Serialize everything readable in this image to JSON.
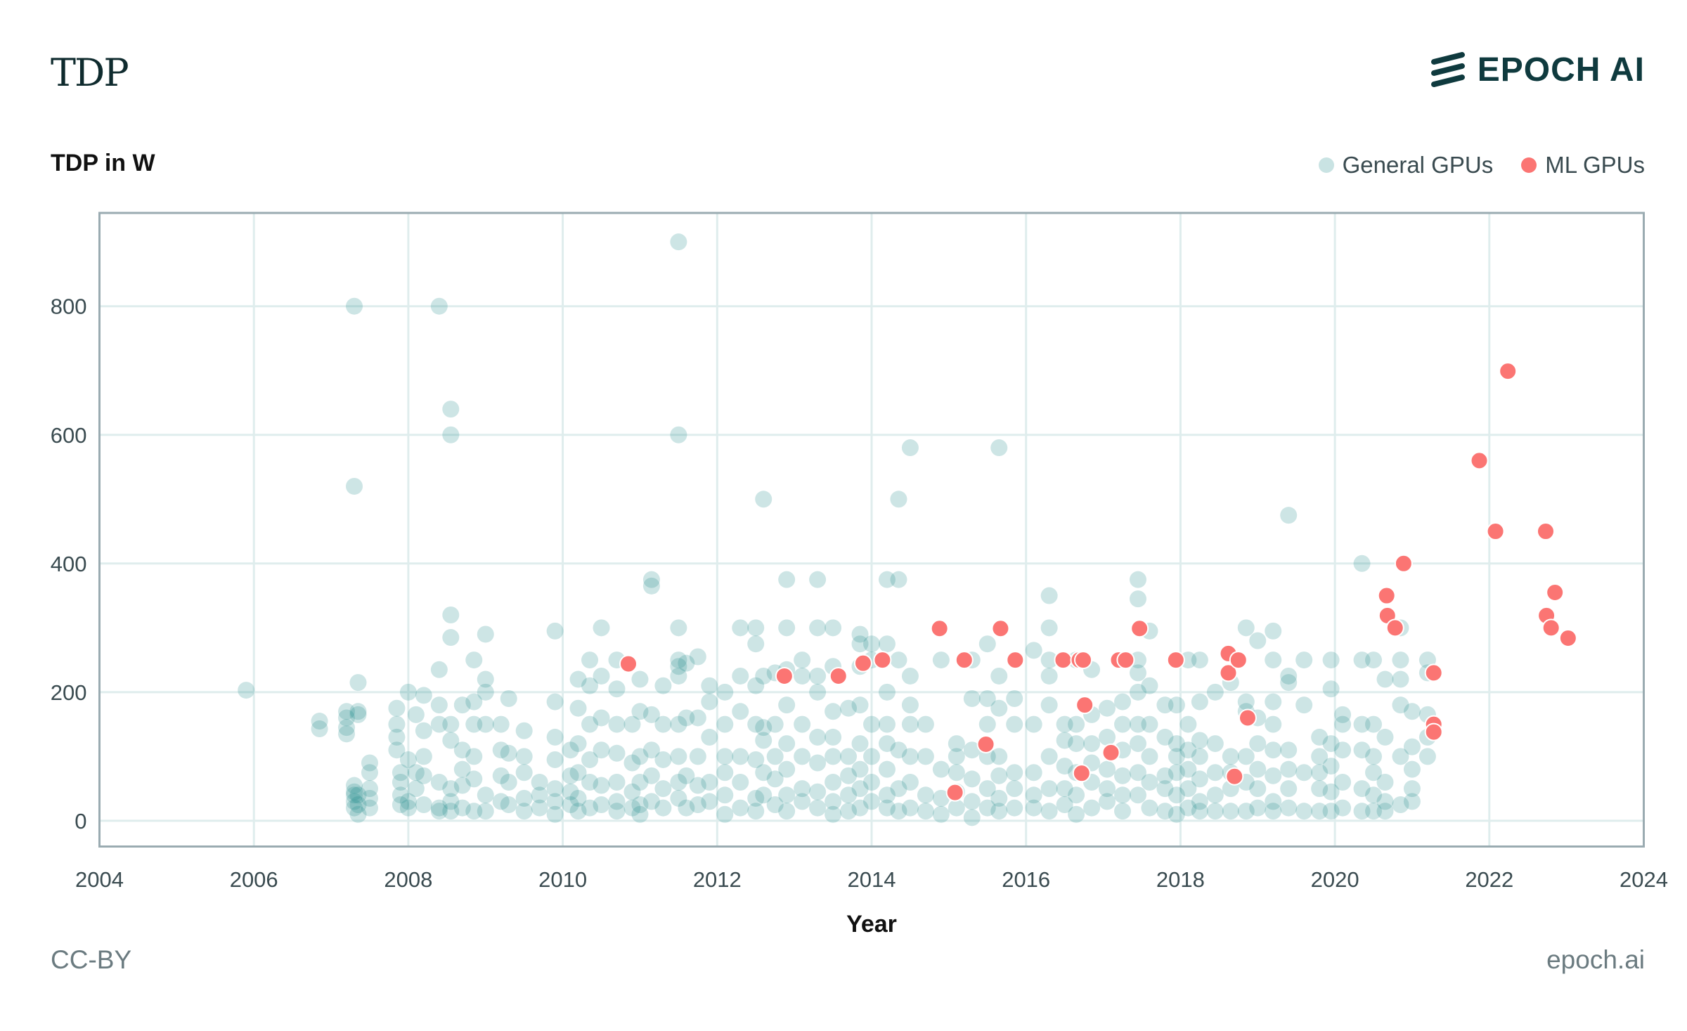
{
  "header": {
    "title": "TDP",
    "logo_text": "EPOCH AI"
  },
  "footer": {
    "license": "CC-BY",
    "site": "epoch.ai"
  },
  "chart_data": {
    "type": "scatter",
    "title": "TDP",
    "ylabel": "TDP in W",
    "xlabel": "Year",
    "xlim": [
      2004,
      2024
    ],
    "ylim": [
      -40,
      945
    ],
    "xticks": [
      2004,
      2006,
      2008,
      2010,
      2012,
      2014,
      2016,
      2018,
      2020,
      2022,
      2024
    ],
    "yticks": [
      0,
      200,
      400,
      600,
      800
    ],
    "grid": true,
    "legend_position": "top-right",
    "colors": {
      "general": "#1a8a8a",
      "ml": "#fb7573",
      "grid": "#dfeded",
      "axis": "#9aabb1"
    },
    "series": [
      {
        "name": "General GPUs",
        "groups": [
          [
            2005.9,
            [
              203
            ]
          ],
          [
            2006.85,
            [
              155,
              143
            ]
          ],
          [
            2007.2,
            [
              170,
              135,
              145,
              160
            ]
          ],
          [
            2007.3,
            [
              800,
              520,
              40,
              45,
              30,
              55,
              20
            ]
          ],
          [
            2007.35,
            [
              215,
              170,
              165,
              10,
              25,
              40
            ]
          ],
          [
            2007.5,
            [
              90,
              75,
              50,
              35,
              20
            ]
          ],
          [
            2007.9,
            [
              75,
              60,
              40,
              25
            ]
          ],
          [
            2007.85,
            [
              175,
              150,
              130,
              110
            ]
          ],
          [
            2008.0,
            [
              200,
              95,
              30,
              20
            ]
          ],
          [
            2008.1,
            [
              165,
              75,
              50
            ]
          ],
          [
            2008.2,
            [
              195,
              140,
              100,
              70,
              25
            ]
          ],
          [
            2008.4,
            [
              800,
              235,
              180,
              150,
              60,
              20,
              15
            ]
          ],
          [
            2008.55,
            [
              640,
              600,
              320,
              285,
              150,
              125,
              50,
              30,
              15
            ]
          ],
          [
            2008.7,
            [
              180,
              110,
              80,
              55,
              20
            ]
          ],
          [
            2008.85,
            [
              250,
              185,
              150,
              100,
              65,
              15
            ]
          ],
          [
            2009.0,
            [
              290,
              220,
              200,
              150,
              40,
              15
            ]
          ],
          [
            2009.2,
            [
              150,
              110,
              70,
              30
            ]
          ],
          [
            2009.3,
            [
              190,
              105,
              60,
              25
            ]
          ],
          [
            2009.5,
            [
              140,
              100,
              75,
              35,
              15
            ]
          ],
          [
            2009.7,
            [
              60,
              40,
              20
            ]
          ],
          [
            2009.9,
            [
              295,
              185,
              130,
              95,
              50,
              30,
              10
            ]
          ],
          [
            2010.1,
            [
              110,
              70,
              45,
              25
            ]
          ],
          [
            2010.2,
            [
              220,
              175,
              120,
              75,
              35,
              15
            ]
          ],
          [
            2010.35,
            [
              250,
              210,
              150,
              95,
              60,
              20
            ]
          ],
          [
            2010.5,
            [
              300,
              225,
              160,
              110,
              55,
              25
            ]
          ],
          [
            2010.7,
            [
              250,
              205,
              150,
              105,
              60,
              30,
              15
            ]
          ],
          [
            2010.9,
            [
              150,
              90,
              45,
              20
            ]
          ],
          [
            2011.0,
            [
              220,
              170,
              100,
              60,
              25,
              10
            ]
          ],
          [
            2011.15,
            [
              375,
              365,
              165,
              110,
              70,
              30
            ]
          ],
          [
            2011.3,
            [
              210,
              150,
              95,
              50,
              20
            ]
          ],
          [
            2011.5,
            [
              900,
              600,
              300,
              250,
              240,
              225,
              150,
              100,
              60,
              35
            ]
          ],
          [
            2011.6,
            [
              245,
              160,
              70,
              20
            ]
          ],
          [
            2011.75,
            [
              255,
              160,
              100,
              55,
              25
            ]
          ],
          [
            2011.9,
            [
              210,
              185,
              130,
              60,
              30
            ]
          ],
          [
            2012.1,
            [
              200,
              150,
              100,
              75,
              40,
              10
            ]
          ],
          [
            2012.3,
            [
              300,
              225,
              170,
              100,
              60,
              20
            ]
          ],
          [
            2012.5,
            [
              275,
              300,
              210,
              150,
              95,
              35,
              15
            ]
          ],
          [
            2012.6,
            [
              500,
              225,
              145,
              125,
              75,
              40
            ]
          ],
          [
            2012.75,
            [
              230,
              150,
              100,
              65,
              25
            ]
          ],
          [
            2012.9,
            [
              375,
              300,
              235,
              180,
              120,
              80,
              40,
              15
            ]
          ],
          [
            2013.1,
            [
              250,
              225,
              150,
              100,
              50,
              30
            ]
          ],
          [
            2013.3,
            [
              375,
              300,
              225,
              200,
              130,
              90,
              45,
              20
            ]
          ],
          [
            2013.5,
            [
              300,
              240,
              170,
              130,
              100,
              60,
              30,
              10
            ]
          ],
          [
            2013.7,
            [
              175,
              100,
              70,
              40,
              15
            ]
          ],
          [
            2013.85,
            [
              290,
              275,
              240,
              180,
              120,
              80,
              50,
              20
            ]
          ],
          [
            2014.0,
            [
              275,
              250,
              150,
              100,
              60,
              30
            ]
          ],
          [
            2014.2,
            [
              375,
              275,
              200,
              150,
              120,
              80,
              40,
              20
            ]
          ],
          [
            2014.35,
            [
              500,
              375,
              250,
              110,
              50,
              15
            ]
          ],
          [
            2014.5,
            [
              580,
              225,
              180,
              150,
              100,
              60,
              20
            ]
          ],
          [
            2014.7,
            [
              150,
              100,
              40,
              15
            ]
          ],
          [
            2014.9,
            [
              250,
              80,
              35,
              10
            ]
          ],
          [
            2015.1,
            [
              120,
              100,
              75,
              45,
              20
            ]
          ],
          [
            2015.3,
            [
              250,
              190,
              110,
              65,
              30,
              5
            ]
          ],
          [
            2015.5,
            [
              275,
              190,
              150,
              100,
              50,
              20
            ]
          ],
          [
            2015.65,
            [
              580,
              225,
              175,
              100,
              70,
              35,
              15
            ]
          ],
          [
            2015.85,
            [
              190,
              150,
              75,
              50,
              20
            ]
          ],
          [
            2016.1,
            [
              265,
              150,
              75,
              40,
              20
            ]
          ],
          [
            2016.3,
            [
              350,
              300,
              250,
              225,
              180,
              100,
              50,
              15
            ]
          ],
          [
            2016.5,
            [
              150,
              125,
              85,
              50,
              25
            ]
          ],
          [
            2016.65,
            [
              250,
              150,
              120,
              75,
              40,
              10
            ]
          ],
          [
            2016.85,
            [
              235,
              165,
              120,
              90,
              60,
              20
            ]
          ],
          [
            2017.05,
            [
              175,
              130,
              80,
              50,
              30
            ]
          ],
          [
            2017.25,
            [
              185,
              150,
              110,
              70,
              40,
              15
            ]
          ],
          [
            2017.45,
            [
              375,
              345,
              250,
              230,
              200,
              150,
              120,
              75,
              40
            ]
          ],
          [
            2017.6,
            [
              295,
              210,
              150,
              100,
              60,
              20
            ]
          ],
          [
            2017.8,
            [
              180,
              130,
              70,
              50,
              15
            ]
          ],
          [
            2017.95,
            [
              180,
              120,
              100,
              75,
              40,
              10
            ]
          ],
          [
            2018.1,
            [
              250,
              150,
              110,
              80,
              50,
              20
            ]
          ],
          [
            2018.25,
            [
              250,
              185,
              125,
              100,
              65,
              30,
              15
            ]
          ],
          [
            2018.45,
            [
              200,
              120,
              75,
              40,
              15
            ]
          ],
          [
            2018.65,
            [
              215,
              100,
              75,
              50,
              15
            ]
          ],
          [
            2018.85,
            [
              300,
              185,
              170,
              100,
              60,
              15
            ]
          ],
          [
            2019.0,
            [
              280,
              160,
              120,
              80,
              50,
              20
            ]
          ],
          [
            2019.2,
            [
              295,
              250,
              185,
              150,
              110,
              70,
              30,
              15
            ]
          ],
          [
            2019.4,
            [
              475,
              225,
              215,
              110,
              80,
              50,
              20
            ]
          ],
          [
            2019.6,
            [
              250,
              180,
              75,
              15
            ]
          ],
          [
            2019.8,
            [
              130,
              100,
              75,
              50,
              15
            ]
          ],
          [
            2019.95,
            [
              250,
              205,
              120,
              85,
              45,
              15
            ]
          ],
          [
            2020.1,
            [
              165,
              150,
              110,
              60,
              20
            ]
          ],
          [
            2020.35,
            [
              400,
              250,
              150,
              110,
              50,
              15
            ]
          ],
          [
            2020.5,
            [
              250,
              150,
              100,
              75,
              40,
              15
            ]
          ],
          [
            2020.65,
            [
              220,
              130,
              60,
              30,
              15
            ]
          ],
          [
            2020.85,
            [
              300,
              250,
              220,
              180,
              100,
              25
            ]
          ],
          [
            2021.0,
            [
              170,
              115,
              80,
              50,
              30
            ]
          ],
          [
            2021.2,
            [
              250,
              230,
              165,
              130,
              100
            ]
          ]
        ]
      },
      {
        "name": "ML GPUs",
        "points": [
          [
            2010.85,
            244
          ],
          [
            2012.87,
            225
          ],
          [
            2013.57,
            225
          ],
          [
            2013.89,
            245
          ],
          [
            2014.14,
            250
          ],
          [
            2014.88,
            299
          ],
          [
            2015.08,
            44
          ],
          [
            2015.2,
            250
          ],
          [
            2015.48,
            119
          ],
          [
            2015.67,
            299
          ],
          [
            2015.86,
            250
          ],
          [
            2016.48,
            250
          ],
          [
            2016.69,
            250
          ],
          [
            2016.72,
            74
          ],
          [
            2016.76,
            180
          ],
          [
            2016.74,
            250
          ],
          [
            2017.1,
            106
          ],
          [
            2017.2,
            250
          ],
          [
            2017.29,
            250
          ],
          [
            2017.47,
            299
          ],
          [
            2017.94,
            250
          ],
          [
            2018.62,
            260
          ],
          [
            2018.62,
            230
          ],
          [
            2018.7,
            69
          ],
          [
            2018.75,
            250
          ],
          [
            2018.87,
            160
          ],
          [
            2020.67,
            350
          ],
          [
            2020.68,
            319
          ],
          [
            2020.78,
            300
          ],
          [
            2020.89,
            400
          ],
          [
            2021.28,
            230
          ],
          [
            2021.28,
            150
          ],
          [
            2021.28,
            138
          ],
          [
            2021.87,
            560
          ],
          [
            2022.08,
            450
          ],
          [
            2022.24,
            699
          ],
          [
            2022.73,
            450
          ],
          [
            2022.74,
            319
          ],
          [
            2022.8,
            300
          ],
          [
            2022.85,
            355
          ],
          [
            2023.02,
            284
          ]
        ]
      }
    ]
  }
}
